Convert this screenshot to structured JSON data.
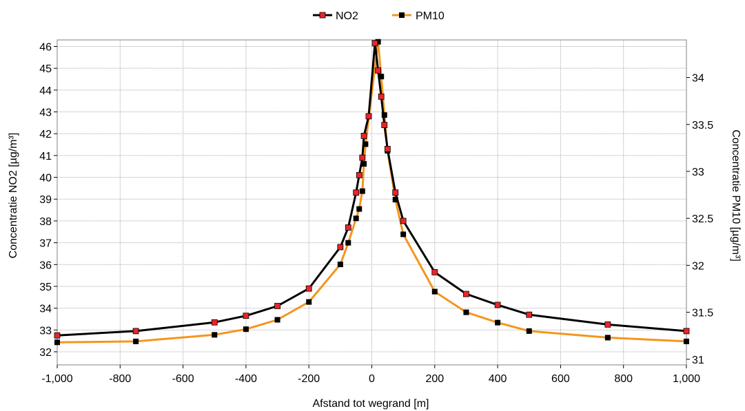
{
  "chart_data": {
    "type": "line",
    "xlabel": "Afstand tot wegrand [m]",
    "ylabel_left": "Concentratie NO2 [µg/m³]",
    "ylabel_right": "Concentratie PM10 [µg/m³]",
    "xlim": [
      -1000,
      1000
    ],
    "ylim_left": [
      31.4,
      46.3
    ],
    "ylim_right": [
      30.94,
      34.4
    ],
    "x_ticks": [
      -1000,
      -800,
      -600,
      -400,
      -200,
      0,
      200,
      400,
      600,
      800,
      1000
    ],
    "x_tick_labels": [
      "-1,000",
      "-800",
      "-600",
      "-400",
      "-200",
      "0",
      "200",
      "400",
      "600",
      "800",
      "1,000"
    ],
    "y_left_ticks": [
      32,
      33,
      34,
      35,
      36,
      37,
      38,
      39,
      40,
      41,
      42,
      43,
      44,
      45,
      46
    ],
    "y_left_tick_labels": [
      "32",
      "33",
      "34",
      "35",
      "36",
      "37",
      "38",
      "39",
      "40",
      "41",
      "42",
      "43",
      "44",
      "45",
      "46"
    ],
    "y_right_ticks": [
      31,
      31.5,
      32,
      32.5,
      33,
      33.5,
      34
    ],
    "y_right_tick_labels": [
      "31",
      "31.5",
      "32",
      "32.5",
      "33",
      "33.5",
      "34"
    ],
    "grid": true,
    "legend_position": "top-center",
    "series": [
      {
        "name": "NO2",
        "axis": "left",
        "line_color": "#000000",
        "marker_color": "#e8262a",
        "points": [
          [
            -1000,
            32.75
          ],
          [
            -750,
            32.95
          ],
          [
            -500,
            33.35
          ],
          [
            -400,
            33.65
          ],
          [
            -300,
            34.1
          ],
          [
            -200,
            34.9
          ],
          [
            -100,
            36.8
          ],
          [
            -75,
            37.7
          ],
          [
            -50,
            39.3
          ],
          [
            -40,
            40.1
          ],
          [
            -30,
            40.9
          ],
          [
            -25,
            41.9
          ],
          [
            -10,
            42.8
          ],
          [
            10,
            46.15
          ],
          [
            20,
            44.9
          ],
          [
            30,
            43.7
          ],
          [
            40,
            42.4
          ],
          [
            50,
            41.3
          ],
          [
            75,
            39.3
          ],
          [
            100,
            38.0
          ],
          [
            200,
            35.65
          ],
          [
            300,
            34.65
          ],
          [
            400,
            34.15
          ],
          [
            500,
            33.7
          ],
          [
            750,
            33.25
          ],
          [
            1000,
            32.95
          ]
        ]
      },
      {
        "name": "PM10",
        "axis": "right",
        "line_color": "#f5951c",
        "marker_color": "#000000",
        "points": [
          [
            -1000,
            31.18
          ],
          [
            -750,
            31.19
          ],
          [
            -500,
            31.26
          ],
          [
            -400,
            31.32
          ],
          [
            -300,
            31.42
          ],
          [
            -200,
            31.61
          ],
          [
            -100,
            32.01
          ],
          [
            -75,
            32.24
          ],
          [
            -50,
            32.5
          ],
          [
            -40,
            32.6
          ],
          [
            -30,
            32.79
          ],
          [
            -25,
            33.08
          ],
          [
            -20,
            33.29
          ],
          [
            20,
            34.38
          ],
          [
            30,
            34.01
          ],
          [
            40,
            33.6
          ],
          [
            50,
            33.22
          ],
          [
            75,
            32.7
          ],
          [
            100,
            32.33
          ],
          [
            200,
            31.72
          ],
          [
            300,
            31.5
          ],
          [
            400,
            31.39
          ],
          [
            500,
            31.3
          ],
          [
            750,
            31.23
          ],
          [
            1000,
            31.19
          ]
        ]
      }
    ]
  }
}
